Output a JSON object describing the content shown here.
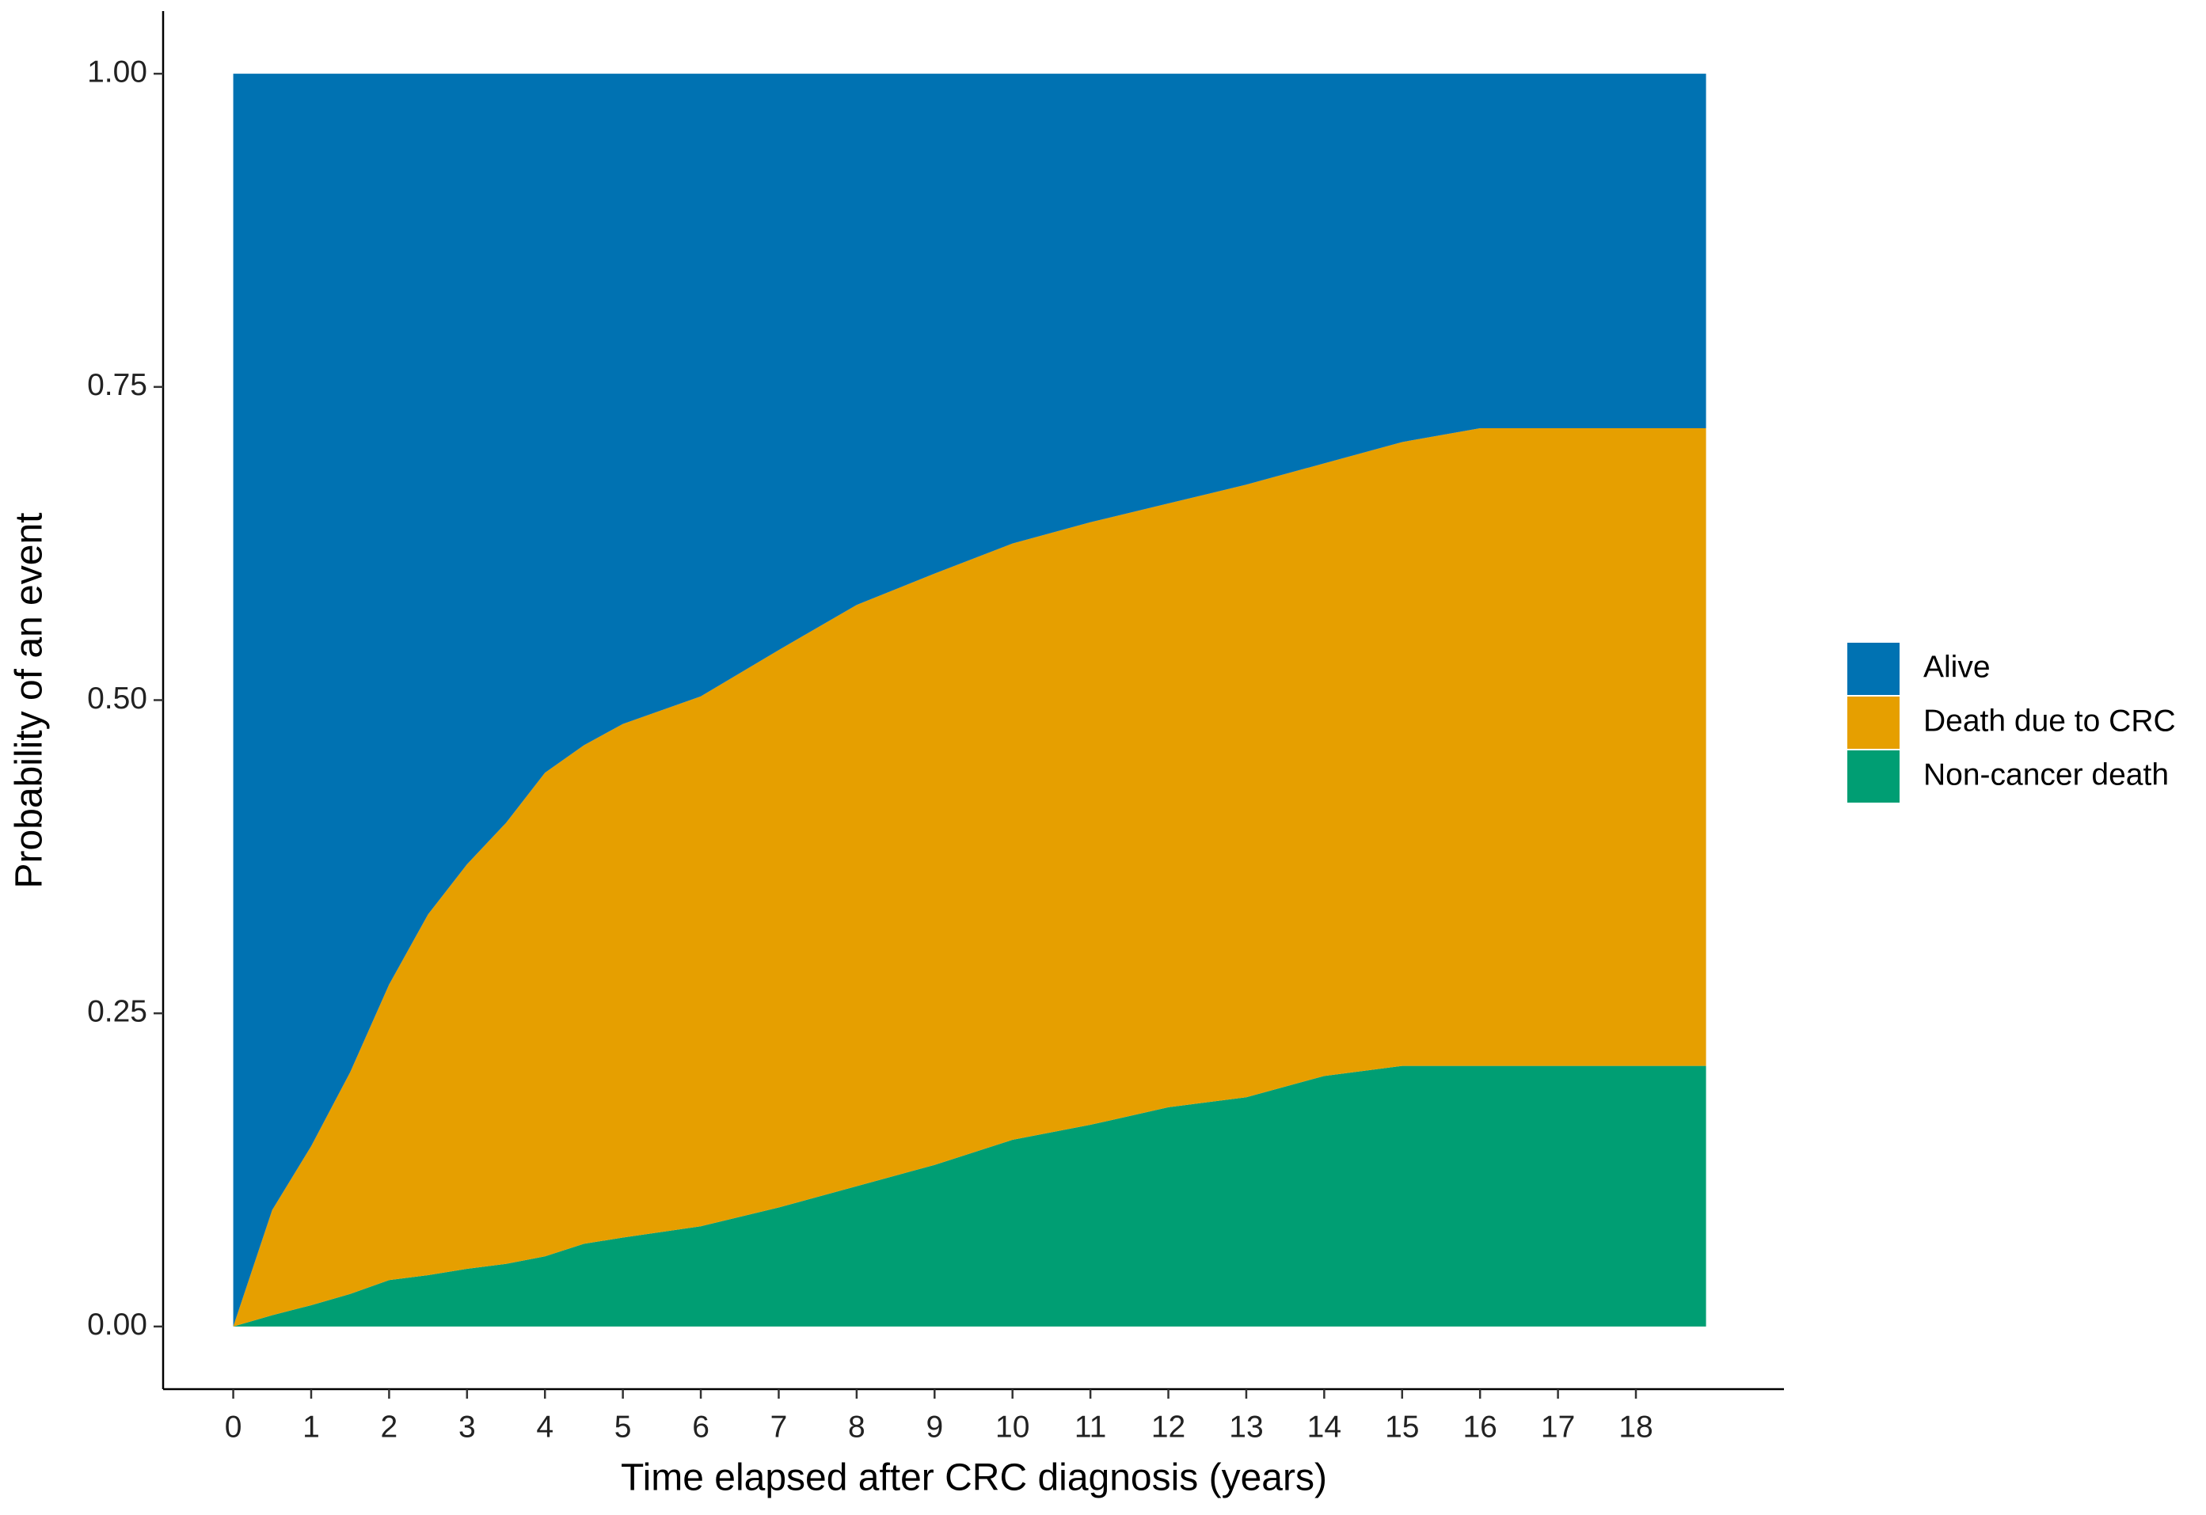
{
  "chart_data": {
    "type": "stacked_area",
    "x_label": "Time elapsed after CRC diagnosis (years)",
    "y_label": "Probability of an event",
    "x": [
      0,
      0.5,
      1,
      1.5,
      2,
      2.5,
      3,
      3.5,
      4,
      4.5,
      5,
      6,
      7,
      8,
      9,
      10,
      11,
      12,
      13,
      14,
      15,
      16,
      17,
      18,
      18.9
    ],
    "series": [
      {
        "name": "Alive",
        "color": "#0072b2",
        "values": [
          1,
          0.907,
          0.856,
          0.797,
          0.727,
          0.671,
          0.631,
          0.598,
          0.558,
          0.536,
          0.519,
          0.497,
          0.46,
          0.424,
          0.399,
          0.375,
          0.358,
          0.343,
          0.328,
          0.311,
          0.294,
          0.283,
          0.283,
          0.283,
          0.283
        ]
      },
      {
        "name": "Death due to CRC",
        "color": "#e69f00",
        "values": [
          0,
          0.084,
          0.127,
          0.177,
          0.236,
          0.288,
          0.323,
          0.352,
          0.386,
          0.398,
          0.41,
          0.423,
          0.445,
          0.464,
          0.472,
          0.476,
          0.481,
          0.482,
          0.489,
          0.489,
          0.498,
          0.509,
          0.509,
          0.509,
          0.509
        ]
      },
      {
        "name": "Non-cancer death",
        "color": "#009e73",
        "values": [
          0,
          0.009,
          0.017,
          0.026,
          0.037,
          0.041,
          0.046,
          0.05,
          0.056,
          0.066,
          0.071,
          0.08,
          0.095,
          0.112,
          0.129,
          0.149,
          0.161,
          0.175,
          0.183,
          0.2,
          0.208,
          0.208,
          0.208,
          0.208,
          0.208
        ]
      }
    ],
    "xlim": [
      -0.9,
      19.9
    ],
    "ylim": [
      -0.05,
      1.05
    ],
    "xticks": [
      0,
      1,
      2,
      3,
      4,
      5,
      6,
      7,
      8,
      9,
      10,
      11,
      12,
      13,
      14,
      15,
      16,
      17,
      18
    ],
    "yticks": [
      {
        "value": 0,
        "label": "0.00"
      },
      {
        "value": 0.25,
        "label": "0.25"
      },
      {
        "value": 0.5,
        "label": "0.50"
      },
      {
        "value": 0.75,
        "label": "0.75"
      },
      {
        "value": 1,
        "label": "1.00"
      }
    ],
    "legend": "right",
    "grid": false
  }
}
